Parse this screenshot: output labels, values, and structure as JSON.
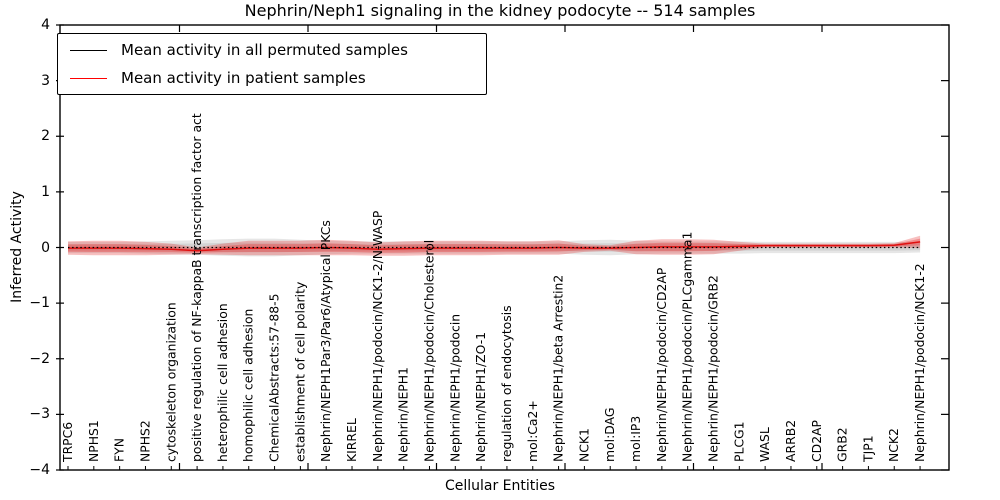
{
  "title": "Nephrin/Neph1 signaling in the kidney podocyte -- 514 samples",
  "axes": {
    "ylabel": "Inferred Activity",
    "xlabel": "Cellular Entities",
    "yticks": [
      {
        "value": 4,
        "label": "4"
      },
      {
        "value": 3,
        "label": "3"
      },
      {
        "value": 2,
        "label": "2"
      },
      {
        "value": 1,
        "label": "1"
      },
      {
        "value": 0,
        "label": "0"
      },
      {
        "value": -1,
        "label": "−1"
      },
      {
        "value": -2,
        "label": "−2"
      },
      {
        "value": -3,
        "label": "−3"
      },
      {
        "value": -4,
        "label": "−4"
      }
    ]
  },
  "legend": {
    "items": [
      {
        "label": "Mean activity in all permuted samples",
        "color": "#000000"
      },
      {
        "label": "Mean activity in patient samples",
        "color": "#ff0000"
      }
    ]
  },
  "chart_data": {
    "type": "area",
    "title": "Nephrin/Neph1 signaling in the kidney podocyte -- 514 samples",
    "xlabel": "Cellular Entities",
    "ylabel": "Inferred Activity",
    "ylim": [
      -4,
      4
    ],
    "grid": false,
    "legend_position": "upper left",
    "categories": [
      "TRPC6",
      "NPHS1",
      "FYN",
      "NPHS2",
      "cytoskeleton organization",
      "positive regulation of NF-kappaB transcription factor act",
      "heterophilic cell adhesion",
      "homophilic cell adhesion",
      "ChemicalAbstracts:57-88-5",
      "establishment of cell polarity",
      "Nephrin/NEPH1Par3/Par6/Atypical PKCs",
      "KIRREL",
      "Nephrin/NEPH1/podocin/NCK1-2/N-WASP",
      "Nephrin/NEPH1",
      "Nephrin/NEPH1/podocin/Cholesterol",
      "Nephrin/NEPH1/podocin",
      "Nephrin/NEPH1/ZO-1",
      "regulation of endocytosis",
      "mol:Ca2+",
      "Nephrin/NEPH1/beta Arrestin2",
      "NCK1",
      "mol:DAG",
      "mol:IP3",
      "Nephrin/NEPH1/podocin/CD2AP",
      "Nephrin/NEPH1/podocin/PLCgamma1",
      "Nephrin/NEPH1/podocin/GRB2",
      "PLCG1",
      "WASL",
      "ARRB2",
      "CD2AP",
      "GRB2",
      "TJP1",
      "NCK2",
      "Nephrin/NEPH1/podocin/NCK1-2"
    ],
    "series": [
      {
        "name": "Mean activity in all permuted samples",
        "line_color": "#000000",
        "line_style": "dotted",
        "band_color": "#808080",
        "mean": [
          0,
          0,
          0,
          0,
          0,
          0,
          0,
          0,
          0,
          0,
          0,
          0,
          0,
          0,
          0,
          0,
          0,
          0,
          0,
          0,
          0,
          0,
          0,
          0,
          0,
          0,
          0,
          0,
          0,
          0,
          0,
          0,
          0,
          0
        ],
        "halfwidth": [
          0.1,
          0.1,
          0.1,
          0.11,
          0.12,
          0.13,
          0.15,
          0.16,
          0.16,
          0.14,
          0.12,
          0.11,
          0.11,
          0.11,
          0.11,
          0.11,
          0.11,
          0.11,
          0.11,
          0.11,
          0.13,
          0.14,
          0.12,
          0.11,
          0.11,
          0.11,
          0.11,
          0.1,
          0.1,
          0.1,
          0.1,
          0.1,
          0.1,
          0.09
        ]
      },
      {
        "name": "Mean activity in patient samples",
        "line_color": "#e01010",
        "line_style": "solid",
        "band_color": "#e52d2d",
        "mean": [
          -0.01,
          -0.01,
          -0.01,
          -0.02,
          -0.03,
          -0.06,
          -0.03,
          -0.01,
          -0.01,
          -0.01,
          0,
          -0.01,
          -0.03,
          -0.02,
          -0.01,
          -0.01,
          -0.01,
          -0.01,
          -0.01,
          0,
          -0.01,
          -0.01,
          0,
          0.01,
          0.01,
          0.01,
          0.02,
          0.035,
          0.035,
          0.035,
          0.035,
          0.035,
          0.04,
          0.1
        ],
        "halfwidth": [
          0.12,
          0.13,
          0.13,
          0.12,
          0.1,
          0.06,
          0.1,
          0.13,
          0.13,
          0.13,
          0.14,
          0.13,
          0.12,
          0.13,
          0.13,
          0.13,
          0.13,
          0.12,
          0.12,
          0.13,
          0.07,
          0.05,
          0.12,
          0.14,
          0.14,
          0.13,
          0.08,
          0.035,
          0.035,
          0.035,
          0.035,
          0.035,
          0.04,
          0.11
        ]
      }
    ]
  }
}
